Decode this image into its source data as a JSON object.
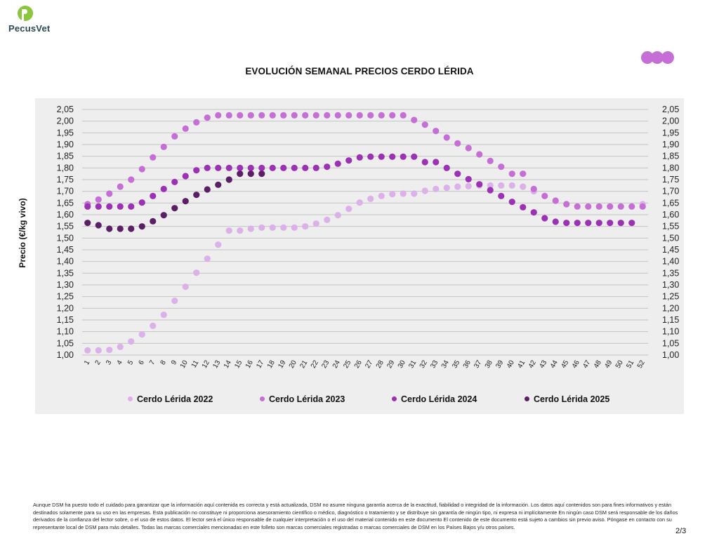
{
  "brand": {
    "name": "PecusVet"
  },
  "chart_data": {
    "type": "scatter",
    "title": "EVOLUCIÓN SEMANAL PRECIOS CERDO LÉRIDA",
    "ylabel": "Precio (€/kg vivo)",
    "xlabel": "",
    "ylim": [
      1.0,
      2.05
    ],
    "ytick_step": 0.05,
    "ytick_labels": [
      "1,00",
      "1,05",
      "1,10",
      "1,15",
      "1,20",
      "1,25",
      "1,30",
      "1,35",
      "1,40",
      "1,45",
      "1,50",
      "1,55",
      "1,60",
      "1,65",
      "1,70",
      "1,75",
      "1,80",
      "1,85",
      "1,90",
      "1,95",
      "2,00",
      "2,05"
    ],
    "categories": [
      "1",
      "2",
      "3",
      "4",
      "5",
      "6",
      "7",
      "8",
      "9",
      "10",
      "11",
      "12",
      "13",
      "14",
      "15",
      "16",
      "17",
      "18",
      "19",
      "20",
      "21",
      "22",
      "23",
      "24",
      "25",
      "26",
      "27",
      "28",
      "29",
      "30",
      "31",
      "32",
      "33",
      "34",
      "35",
      "36",
      "37",
      "38",
      "39",
      "40",
      "41",
      "42",
      "43",
      "44",
      "45",
      "46",
      "47",
      "48",
      "49",
      "50",
      "51",
      "52"
    ],
    "grid": true,
    "secondary_y_axis": true,
    "legend_position": "bottom",
    "series": [
      {
        "name": "Cerdo Lérida 2022",
        "color": "#dcb0e8",
        "values": [
          1.02,
          1.02,
          1.022,
          1.035,
          1.058,
          1.088,
          1.125,
          1.172,
          1.232,
          1.292,
          1.352,
          1.412,
          1.472,
          1.532,
          1.532,
          1.54,
          1.545,
          1.545,
          1.545,
          1.545,
          1.55,
          1.562,
          1.578,
          1.598,
          1.625,
          1.652,
          1.668,
          1.68,
          1.688,
          1.69,
          1.69,
          1.702,
          1.71,
          1.715,
          1.72,
          1.722,
          1.725,
          1.725,
          1.725,
          1.725,
          1.72,
          1.7,
          null,
          null,
          null,
          null,
          null,
          null,
          null,
          null,
          null,
          1.645
        ]
      },
      {
        "name": "Cerdo Lérida 2023",
        "color": "#c56fd6",
        "values": [
          1.645,
          1.665,
          1.69,
          1.72,
          1.75,
          1.795,
          1.845,
          1.89,
          1.935,
          1.968,
          1.995,
          2.015,
          2.025,
          2.025,
          2.025,
          2.025,
          2.025,
          2.025,
          2.025,
          2.025,
          2.025,
          2.025,
          2.025,
          2.025,
          2.025,
          2.025,
          2.025,
          2.025,
          2.025,
          2.025,
          2.005,
          1.985,
          1.958,
          1.93,
          1.905,
          1.885,
          1.858,
          1.83,
          1.805,
          1.775,
          1.775,
          1.71,
          1.68,
          1.66,
          1.645,
          1.635,
          1.635,
          1.635,
          1.635,
          1.635,
          1.635,
          1.635
        ]
      },
      {
        "name": "Cerdo Lérida 2024",
        "color": "#9a32b3",
        "values": [
          1.635,
          1.635,
          1.635,
          1.635,
          1.635,
          1.652,
          1.68,
          1.71,
          1.74,
          1.765,
          1.79,
          1.8,
          1.8,
          1.8,
          1.8,
          1.8,
          1.8,
          1.8,
          1.8,
          1.8,
          1.8,
          1.8,
          1.805,
          1.818,
          1.832,
          1.845,
          1.848,
          1.848,
          1.848,
          1.848,
          1.848,
          1.825,
          1.825,
          1.8,
          1.775,
          1.752,
          1.73,
          1.705,
          1.68,
          1.655,
          1.632,
          1.61,
          1.585,
          1.57,
          1.565,
          1.565,
          1.565,
          1.565,
          1.565,
          1.565,
          1.565,
          null
        ]
      },
      {
        "name": "Cerdo Lérida 2025",
        "color": "#5b1f66",
        "values": [
          1.565,
          1.555,
          1.54,
          1.54,
          1.54,
          1.55,
          1.572,
          1.598,
          1.628,
          1.658,
          1.685,
          1.708,
          1.728,
          1.75,
          1.775,
          1.775,
          1.775,
          null,
          null,
          null,
          null,
          null,
          null,
          null,
          null,
          null,
          null,
          null,
          null,
          null,
          null,
          null,
          null,
          null,
          null,
          null,
          null,
          null,
          null,
          null,
          null,
          null,
          null,
          null,
          null,
          null,
          null,
          null,
          null,
          null,
          null,
          null
        ]
      }
    ]
  },
  "footer": {
    "disclaimer": "Aunque DSM ha puesto todo el cuidado para garantizar que la información aquí contenida es correcta y está actualizada, DSM no asume ninguna garantía acerca de la exactitud, fiabilidad o integridad de la información. Los datos aquí contenidos son para fines informativos y están destinados solamente para su uso en las empresas. Esta publicación no constituye ni proporciona asesoramiento científico o médico, diagnóstico o tratamiento y se distribuye sin garantía de ningún tipo, ni expresa ni implícitamente En ningún caso DSM será responsable de los daños derivados de la confianza del lector sobre, o el uso de estos datos. El lector será el único responsable de cualquier interpretación o el uso del material contenido en este documento El contenido de este documento está sujeto a cambios sin previo aviso. Póngase en contacto con su representante local de DSM para más detalles. Todas las marcas comerciales mencionadas en este folleto son marcas comerciales registradas o marcas comerciales de DSM en los Países Bajos y/u otros países.",
    "page_number": "2/3"
  }
}
